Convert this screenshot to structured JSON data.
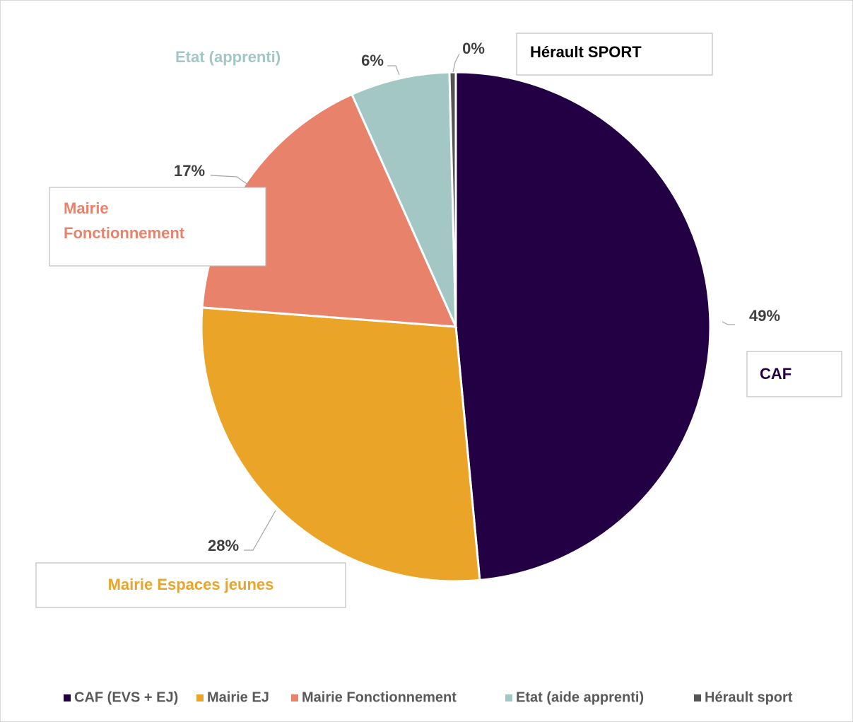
{
  "chart_data": {
    "type": "pie",
    "categories": [
      "CAF (EVS + EJ)",
      "Mairie EJ",
      "Mairie Fonctionnement",
      "Etat (aide apprenti)",
      "Hérault sport"
    ],
    "values": [
      48.5,
      27.7,
      17.1,
      6.3,
      0.4
    ],
    "value_labels": [
      "49%",
      "28%",
      "17%",
      "6%",
      "0%"
    ],
    "colors": [
      "#230043",
      "#eaa427",
      "#e8826b",
      "#a3c7c5",
      "#555555"
    ],
    "callouts": [
      [
        "CAF"
      ],
      [
        "Mairie Espaces jeunes"
      ],
      [
        "Mairie",
        "Fonctionnement"
      ],
      [
        "Etat (apprenti)"
      ],
      [
        "Hérault SPORT"
      ]
    ],
    "callout_colors": [
      "#230043",
      "#eaa427",
      "#e8826b",
      "#a3c7c5",
      "#000000"
    ],
    "legend": "bottom"
  }
}
